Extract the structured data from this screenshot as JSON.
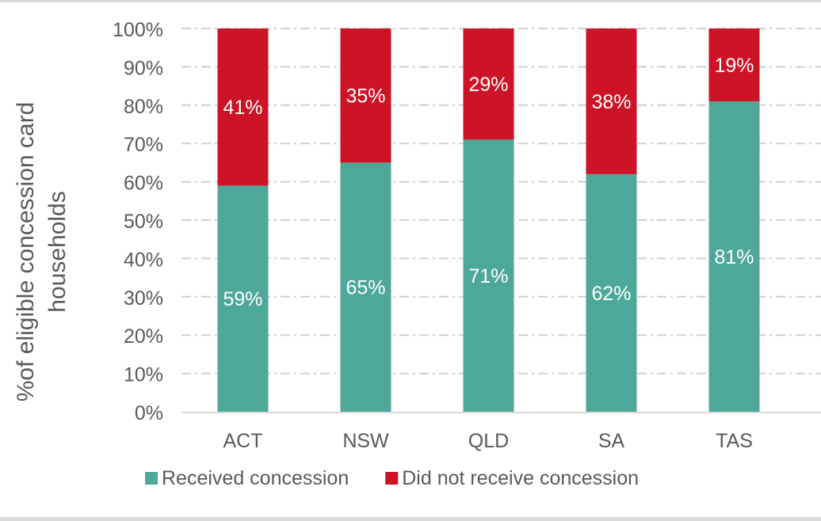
{
  "chart_data": {
    "type": "bar",
    "stacked": true,
    "percent_stacked": true,
    "categories": [
      "ACT",
      "NSW",
      "QLD",
      "SA",
      "TAS"
    ],
    "series": [
      {
        "name": "Received concession",
        "values": [
          59,
          65,
          71,
          62,
          81
        ],
        "labels": [
          "59%",
          "65%",
          "71%",
          "62%",
          "81%"
        ],
        "color": "#4ea89a"
      },
      {
        "name": "Did not receive concession",
        "values": [
          41,
          35,
          29,
          38,
          19
        ],
        "labels": [
          "41%",
          "35%",
          "29%",
          "38%",
          "19%"
        ],
        "color": "#cc1426"
      }
    ],
    "title": "",
    "xlabel": "",
    "ylabel": "%of eligible concession card households",
    "ylabel_lines": [
      "%of eligible concession card",
      "households"
    ],
    "ylim": [
      0,
      100
    ],
    "yticks": [
      "0%",
      "10%",
      "20%",
      "30%",
      "40%",
      "50%",
      "60%",
      "70%",
      "80%",
      "90%",
      "100%"
    ],
    "grid": true,
    "grid_style": "dash-dot",
    "legend_position": "bottom"
  }
}
